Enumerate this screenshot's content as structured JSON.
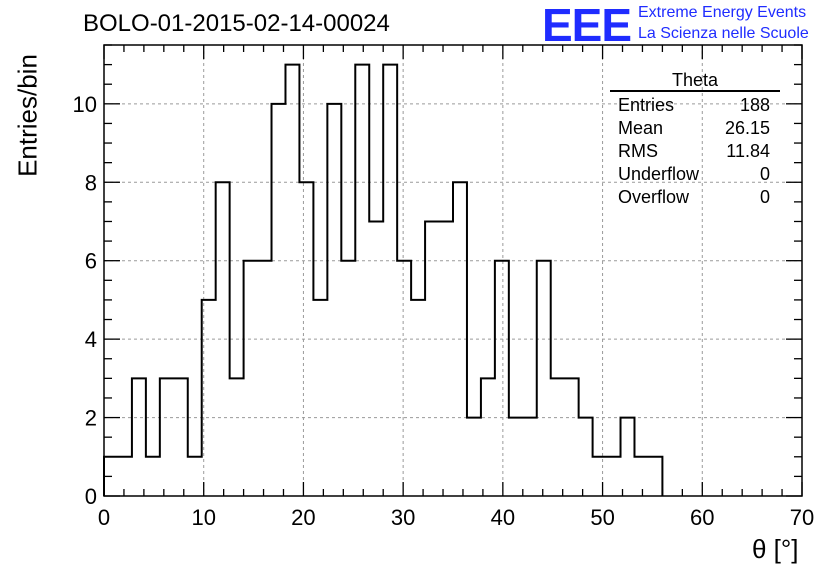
{
  "page": {
    "title": "BOLO-01-2015-02-14-00024",
    "logo": {
      "mark": "EEE",
      "line1": "Extreme Energy Events",
      "line2": "La Scienza nelle Scuole",
      "color": "#1f2cff"
    }
  },
  "stats": {
    "name": "Theta",
    "rows": [
      {
        "label": "Entries",
        "value": "188"
      },
      {
        "label": "Mean",
        "value": "26.15"
      },
      {
        "label": "RMS",
        "value": "11.84"
      },
      {
        "label": "Underflow",
        "value": "0"
      },
      {
        "label": "Overflow",
        "value": "0"
      }
    ]
  },
  "chart_data": {
    "type": "bar",
    "style": "step-histogram",
    "title": "BOLO-01-2015-02-14-00024",
    "xlabel": "θ [°]",
    "ylabel": "Entries/bin",
    "bin_edges": [
      0,
      1.4,
      2.8,
      4.2,
      5.6,
      7.0,
      8.4,
      9.8,
      11.2,
      12.6,
      14.0,
      15.4,
      16.8,
      18.2,
      19.6,
      21.0,
      22.4,
      23.8,
      25.2,
      26.6,
      28.0,
      29.4,
      30.8,
      32.2,
      33.6,
      35.0,
      36.4,
      37.8,
      39.2,
      40.6,
      42.0,
      43.4,
      44.8,
      46.2,
      47.6,
      49.0,
      50.4,
      51.8,
      53.2,
      54.6,
      56.0
    ],
    "values": [
      1,
      1,
      3,
      1,
      3,
      3,
      1,
      5,
      8,
      3,
      6,
      6,
      10,
      11,
      8,
      5,
      10,
      6,
      11,
      7,
      11,
      6,
      5,
      7,
      7,
      8,
      2,
      3,
      6,
      2,
      2,
      6,
      3,
      3,
      2,
      1,
      1,
      2,
      1,
      1
    ],
    "xlim": [
      0,
      70
    ],
    "ylim": [
      0,
      11.5
    ],
    "xticks": [
      0,
      10,
      20,
      30,
      40,
      50,
      60,
      70
    ],
    "yticks": [
      0,
      2,
      4,
      6,
      8,
      10
    ],
    "grid": true,
    "line_color": "#000000",
    "legend": "none"
  }
}
